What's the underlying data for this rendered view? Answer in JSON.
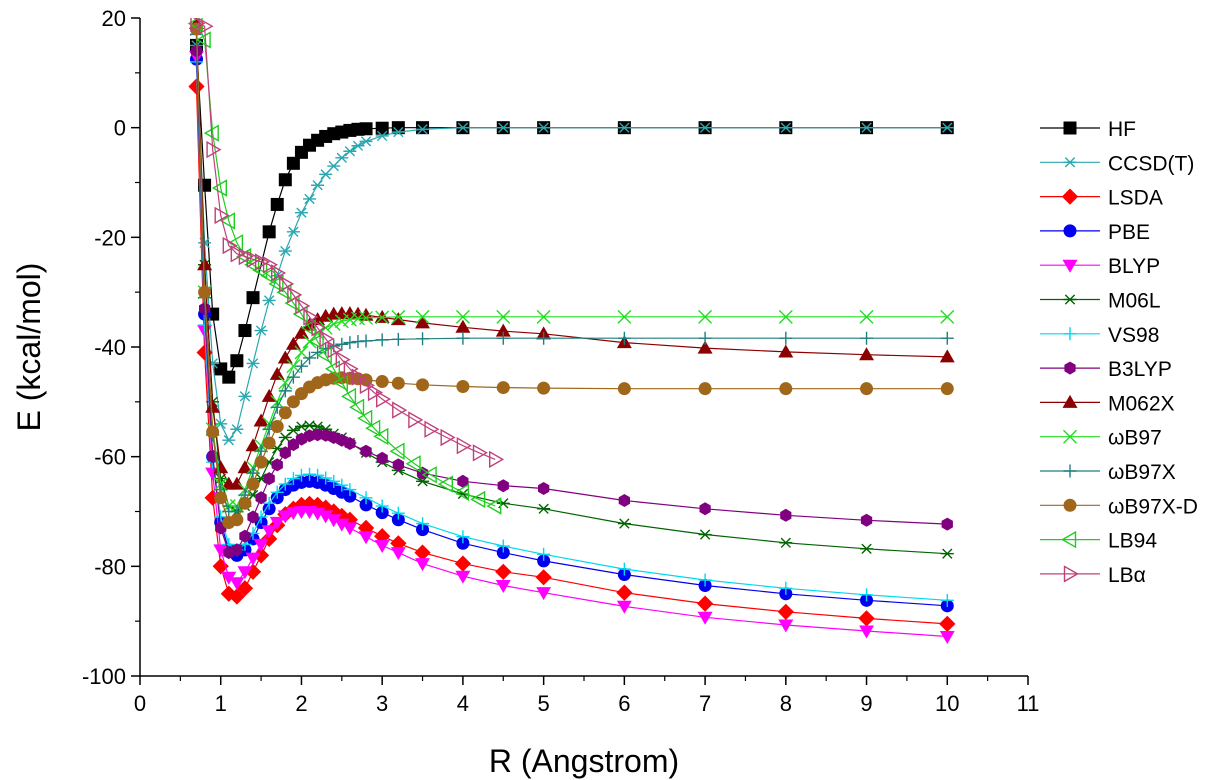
{
  "chart_data": {
    "type": "line",
    "title": "",
    "xlabel": "R (Angstrom)",
    "ylabel": "E (kcal/mol)",
    "xlim": [
      0,
      11
    ],
    "ylim": [
      -100,
      20
    ],
    "xticks": [
      0,
      1,
      2,
      3,
      4,
      5,
      6,
      7,
      8,
      9,
      10,
      11
    ],
    "yticks": [
      -100,
      -80,
      -60,
      -40,
      -20,
      0,
      20
    ],
    "xtick_labels": [
      "0",
      "1",
      "2",
      "3",
      "4",
      "5",
      "6",
      "7",
      "8",
      "9",
      "10",
      "11"
    ],
    "ytick_labels": [
      "-100",
      "-80",
      "-60",
      "-40",
      "-20",
      "0",
      "20"
    ],
    "grid": false,
    "legend_position": "right",
    "series": [
      {
        "name": "HF",
        "color": "#000000",
        "marker": "square",
        "x": [
          0.7,
          0.8,
          0.9,
          1.0,
          1.1,
          1.2,
          1.3,
          1.4,
          1.6,
          1.7,
          1.8,
          1.9,
          2.0,
          2.1,
          2.2,
          2.3,
          2.4,
          2.5,
          2.6,
          2.7,
          2.8,
          3.0,
          3.2,
          3.5,
          4.0,
          4.5,
          5.0,
          6,
          7,
          8,
          9,
          10
        ],
        "y": [
          15,
          -10.5,
          -34,
          -44,
          -45.5,
          -42.5,
          -37,
          -31,
          -19,
          -14,
          -9.5,
          -6.5,
          -4.5,
          -3.2,
          -2.3,
          -1.6,
          -1.1,
          -0.8,
          -0.5,
          -0.3,
          -0.2,
          -0.1,
          0,
          0,
          0,
          0,
          0,
          0,
          0,
          0,
          0,
          0
        ]
      },
      {
        "name": "CCSD(T)",
        "color": "#2aa8b0",
        "marker": "asterisk",
        "x": [
          0.7,
          0.8,
          0.9,
          1.0,
          1.1,
          1.2,
          1.3,
          1.4,
          1.5,
          1.6,
          1.7,
          1.8,
          1.9,
          2.0,
          2.1,
          2.2,
          2.3,
          2.4,
          2.5,
          2.6,
          2.7,
          2.8,
          3.0,
          3.2,
          3.5,
          4.0,
          4.5,
          5.0,
          6,
          7,
          8,
          9,
          10
        ],
        "y": [
          15,
          -21,
          -43,
          -54,
          -57,
          -55,
          -49,
          -43,
          -37,
          -31.5,
          -27,
          -22.5,
          -19,
          -15.5,
          -13,
          -10.5,
          -8.5,
          -7,
          -5.5,
          -4.3,
          -3.3,
          -2.5,
          -1.5,
          -0.8,
          -0.3,
          0,
          0,
          0,
          0,
          0,
          0,
          0,
          0
        ]
      },
      {
        "name": "LSDA",
        "color": "#ff0000",
        "marker": "diamond",
        "x": [
          0.7,
          0.8,
          0.9,
          1.0,
          1.1,
          1.2,
          1.3,
          1.4,
          1.5,
          1.6,
          1.7,
          1.8,
          1.9,
          2.0,
          2.1,
          2.2,
          2.3,
          2.4,
          2.5,
          2.6,
          2.8,
          3.0,
          3.2,
          3.5,
          4.0,
          4.5,
          5.0,
          6,
          7,
          8,
          9,
          10
        ],
        "y": [
          7.5,
          -41,
          -67.5,
          -80,
          -85,
          -85.5,
          -84,
          -81,
          -78,
          -75,
          -72.5,
          -70.5,
          -69.5,
          -68.8,
          -68.6,
          -68.8,
          -69.3,
          -70,
          -70.8,
          -71.5,
          -73,
          -74.5,
          -75.8,
          -77.5,
          -79.5,
          -81,
          -82,
          -84.8,
          -86.8,
          -88.3,
          -89.5,
          -90.5
        ]
      },
      {
        "name": "PBE",
        "color": "#0000ee",
        "marker": "circle",
        "x": [
          0.7,
          0.8,
          0.9,
          1.0,
          1.1,
          1.2,
          1.3,
          1.4,
          1.5,
          1.6,
          1.7,
          1.8,
          1.9,
          2.0,
          2.1,
          2.2,
          2.3,
          2.4,
          2.5,
          2.6,
          2.8,
          3.0,
          3.2,
          3.5,
          4.0,
          4.5,
          5.0,
          6,
          7,
          8,
          9,
          10
        ],
        "y": [
          12.5,
          -34,
          -60,
          -72,
          -77,
          -78,
          -77,
          -75,
          -72,
          -69.5,
          -67.5,
          -66,
          -65.2,
          -64.7,
          -64.5,
          -64.7,
          -65.2,
          -65.8,
          -66.5,
          -67.2,
          -68.8,
          -70.2,
          -71.5,
          -73.3,
          -75.8,
          -77.5,
          -79,
          -81.5,
          -83.5,
          -85,
          -86.2,
          -87.2
        ]
      },
      {
        "name": "BLYP",
        "color": "#ff00ff",
        "marker": "triangle-down",
        "x": [
          0.7,
          0.8,
          0.9,
          1.0,
          1.1,
          1.2,
          1.3,
          1.4,
          1.5,
          1.6,
          1.7,
          1.8,
          1.9,
          2.0,
          2.1,
          2.2,
          2.3,
          2.4,
          2.5,
          2.6,
          2.8,
          3.0,
          3.2,
          3.5,
          4.0,
          4.5,
          5.0,
          6,
          7,
          8,
          9,
          10
        ],
        "y": [
          13,
          -37,
          -63,
          -77,
          -82,
          -83,
          -81,
          -78.5,
          -76,
          -73.5,
          -72,
          -70.8,
          -70.2,
          -70,
          -70,
          -70.3,
          -70.8,
          -71.5,
          -72.3,
          -73,
          -74.6,
          -76.2,
          -77.5,
          -79.5,
          -81.8,
          -83.5,
          -84.8,
          -87.3,
          -89.3,
          -90.7,
          -91.8,
          -92.8
        ]
      },
      {
        "name": "M06L",
        "color": "#006400",
        "marker": "star",
        "x": [
          0.7,
          0.8,
          0.9,
          1.0,
          1.1,
          1.2,
          1.3,
          1.4,
          1.5,
          1.6,
          1.7,
          1.8,
          1.9,
          2.0,
          2.1,
          2.2,
          2.3,
          2.4,
          2.5,
          2.6,
          2.8,
          3.0,
          3.2,
          3.5,
          4.0,
          4.5,
          5.0,
          6,
          7,
          8,
          9,
          10
        ],
        "y": [
          18,
          -25,
          -50,
          -64,
          -69,
          -70,
          -69,
          -67,
          -64,
          -61,
          -58.5,
          -56.5,
          -55.2,
          -54.5,
          -54.3,
          -54.5,
          -55,
          -55.8,
          -56.5,
          -57.5,
          -59.3,
          -61,
          -62.5,
          -64.5,
          -66.8,
          -68.5,
          -69.5,
          -72.2,
          -74.2,
          -75.7,
          -76.8,
          -77.7
        ]
      },
      {
        "name": "VS98",
        "color": "#00d8f0",
        "marker": "plus",
        "x": [
          0.7,
          0.8,
          0.9,
          1.0,
          1.1,
          1.2,
          1.3,
          1.4,
          1.5,
          1.6,
          1.7,
          1.8,
          1.9,
          2.0,
          2.1,
          2.2,
          2.3,
          2.4,
          2.5,
          2.6,
          2.8,
          3.0,
          3.2,
          3.5,
          4.0,
          4.5,
          5.0,
          6,
          7,
          8,
          9,
          10
        ],
        "y": [
          12,
          -36,
          -61,
          -71,
          -76,
          -77,
          -76,
          -74,
          -71,
          -68.5,
          -66.5,
          -65,
          -64,
          -63.4,
          -63.2,
          -63.4,
          -63.9,
          -64.5,
          -65.2,
          -66,
          -67.5,
          -69,
          -70.3,
          -72.2,
          -74.6,
          -76.3,
          -77.8,
          -80.5,
          -82.5,
          -84,
          -85.2,
          -86.2
        ]
      },
      {
        "name": "B3LYP",
        "color": "#800080",
        "marker": "hexagon",
        "x": [
          0.7,
          0.8,
          0.9,
          1.0,
          1.1,
          1.2,
          1.3,
          1.4,
          1.5,
          1.6,
          1.7,
          1.8,
          1.9,
          2.0,
          2.1,
          2.2,
          2.3,
          2.4,
          2.5,
          2.6,
          2.8,
          3.0,
          3.2,
          3.5,
          4.0,
          4.5,
          5.0,
          6,
          7,
          8,
          9,
          10
        ],
        "y": [
          14,
          -33,
          -60,
          -73,
          -77.5,
          -77,
          -74.5,
          -71,
          -67.5,
          -64,
          -61.5,
          -59.3,
          -57.8,
          -56.8,
          -56.2,
          -56,
          -56.1,
          -56.5,
          -57,
          -57.6,
          -59,
          -60.3,
          -61.5,
          -63,
          -64.5,
          -65.3,
          -65.8,
          -68,
          -69.5,
          -70.7,
          -71.6,
          -72.3
        ]
      },
      {
        "name": "M062X",
        "color": "#8b0000",
        "marker": "triangle-up",
        "x": [
          0.7,
          0.8,
          0.9,
          1.0,
          1.1,
          1.2,
          1.3,
          1.4,
          1.5,
          1.6,
          1.7,
          1.8,
          1.9,
          2.0,
          2.1,
          2.2,
          2.3,
          2.4,
          2.5,
          2.6,
          2.7,
          2.8,
          3.0,
          3.2,
          3.5,
          4.0,
          4.5,
          5.0,
          6,
          7,
          8,
          9,
          10
        ],
        "y": [
          19,
          -25,
          -51,
          -62,
          -65,
          -65,
          -62,
          -58,
          -53.5,
          -49,
          -45,
          -42,
          -39.5,
          -37.5,
          -36,
          -35,
          -34.4,
          -34,
          -33.9,
          -33.9,
          -34,
          -34.2,
          -34.6,
          -35,
          -35.6,
          -36.4,
          -37.1,
          -37.6,
          -39.2,
          -40.2,
          -40.9,
          -41.4,
          -41.8
        ]
      },
      {
        "name": "ωB97",
        "color": "#22dd22",
        "marker": "x",
        "x": [
          0.7,
          0.8,
          0.9,
          1.0,
          1.1,
          1.2,
          1.3,
          1.4,
          1.5,
          1.6,
          1.7,
          1.8,
          1.9,
          2.0,
          2.1,
          2.2,
          2.3,
          2.4,
          2.5,
          2.6,
          2.7,
          2.8,
          3.0,
          3.2,
          3.5,
          4.0,
          4.5,
          5.0,
          6,
          7,
          8,
          9,
          10
        ],
        "y": [
          18,
          -30,
          -55,
          -65,
          -69,
          -69,
          -66,
          -62,
          -58,
          -54,
          -50,
          -46.5,
          -43.5,
          -41,
          -39,
          -37.5,
          -36.5,
          -35.8,
          -35.3,
          -35,
          -34.8,
          -34.7,
          -34.6,
          -34.5,
          -34.5,
          -34.5,
          -34.5,
          -34.5,
          -34.5,
          -34.5,
          -34.5,
          -34.5,
          -34.5
        ]
      },
      {
        "name": "ωB97X",
        "color": "#1f7f80",
        "marker": "plus",
        "x": [
          0.7,
          0.8,
          0.9,
          1.0,
          1.1,
          1.2,
          1.3,
          1.4,
          1.5,
          1.6,
          1.7,
          1.8,
          1.9,
          2.0,
          2.1,
          2.2,
          2.3,
          2.4,
          2.5,
          2.6,
          2.7,
          2.8,
          3.0,
          3.2,
          3.5,
          4.0,
          4.5,
          5.0,
          6,
          7,
          8,
          9,
          10
        ],
        "y": [
          17,
          -31,
          -56,
          -66,
          -70,
          -70,
          -67,
          -63,
          -59,
          -55,
          -51,
          -48,
          -45.5,
          -43.5,
          -42,
          -41,
          -40.3,
          -39.8,
          -39.5,
          -39.2,
          -39,
          -38.9,
          -38.7,
          -38.6,
          -38.5,
          -38.4,
          -38.4,
          -38.4,
          -38.4,
          -38.4,
          -38.4,
          -38.4,
          -38.4
        ]
      },
      {
        "name": "ωB97X-D",
        "color": "#a0661a",
        "marker": "circle",
        "x": [
          0.7,
          0.8,
          0.9,
          1.0,
          1.1,
          1.2,
          1.3,
          1.4,
          1.5,
          1.6,
          1.7,
          1.8,
          1.9,
          2.0,
          2.1,
          2.2,
          2.3,
          2.4,
          2.5,
          2.6,
          2.7,
          2.8,
          3.0,
          3.2,
          3.5,
          4.0,
          4.5,
          5.0,
          6,
          7,
          8,
          9,
          10
        ],
        "y": [
          18,
          -30,
          -55.5,
          -67.5,
          -72,
          -71.5,
          -68.5,
          -65,
          -61,
          -57.5,
          -54.5,
          -52,
          -50,
          -48.5,
          -47.3,
          -46.5,
          -46,
          -45.7,
          -45.6,
          -45.7,
          -45.8,
          -46,
          -46.3,
          -46.6,
          -46.9,
          -47.2,
          -47.4,
          -47.5,
          -47.6,
          -47.6,
          -47.6,
          -47.6,
          -47.6
        ]
      },
      {
        "name": "LB94",
        "color": "#22cc22",
        "marker": "triangle-left",
        "x": [
          0.7,
          0.8,
          0.9,
          1.0,
          1.1,
          1.2,
          1.3,
          1.4,
          1.5,
          1.6,
          1.7,
          1.8,
          1.9,
          2.0,
          2.1,
          2.2,
          2.3,
          2.4,
          2.5,
          2.6,
          2.7,
          2.8,
          2.9,
          3.0,
          3.2,
          3.4,
          3.6,
          3.8,
          4.0,
          4.2,
          4.4
        ],
        "y": [
          19,
          16,
          -1,
          -11,
          -17,
          -21,
          -23.5,
          -25,
          -26,
          -27,
          -28.5,
          -30,
          -32,
          -34,
          -36.5,
          -39,
          -41.5,
          -44,
          -46.5,
          -49,
          -51,
          -53,
          -54.8,
          -56.3,
          -59,
          -61.3,
          -63.3,
          -65,
          -66.5,
          -67.8,
          -69
        ]
      },
      {
        "name": "LBα",
        "color": "#c0407a",
        "marker": "triangle-right",
        "x": [
          0.7,
          0.8,
          0.9,
          1.0,
          1.1,
          1.2,
          1.3,
          1.4,
          1.5,
          1.6,
          1.7,
          1.8,
          1.9,
          2.0,
          2.1,
          2.2,
          2.3,
          2.4,
          2.5,
          2.6,
          2.7,
          2.8,
          2.9,
          3.0,
          3.2,
          3.4,
          3.6,
          3.8,
          4.0,
          4.2,
          4.4
        ],
        "y": [
          19,
          18.5,
          -4,
          -16,
          -21.5,
          -23,
          -23.5,
          -24,
          -24.5,
          -25,
          -26.5,
          -28.5,
          -30.5,
          -32.5,
          -34.5,
          -36.5,
          -38.5,
          -40.5,
          -42.3,
          -44,
          -45.5,
          -47,
          -48.3,
          -49.5,
          -51.5,
          -53.3,
          -55,
          -56.5,
          -58,
          -59.3,
          -60.5
        ]
      }
    ]
  }
}
